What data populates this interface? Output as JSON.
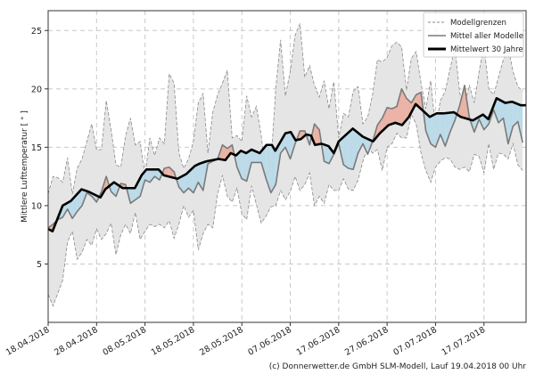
{
  "chart_data": {
    "type": "line",
    "title": "",
    "xlabel": "",
    "ylabel": "Mittlere Lufttemperatur [ ° ]",
    "xlim_days": [
      0,
      98.7
    ],
    "ylim": [
      0,
      26.7
    ],
    "grid": true,
    "legend_position": "top-right",
    "yticks": [
      5,
      10,
      15,
      20,
      25
    ],
    "xticks": [
      {
        "day": 0,
        "label": "18.04.2018"
      },
      {
        "day": 10,
        "label": "28.04.2018"
      },
      {
        "day": 20,
        "label": "08.05.2018"
      },
      {
        "day": 30,
        "label": "18.05.2018"
      },
      {
        "day": 40,
        "label": "28.05.2018"
      },
      {
        "day": 50,
        "label": "07.06.2018"
      },
      {
        "day": 60,
        "label": "17.06.2018"
      },
      {
        "day": 70,
        "label": "27.06.2018"
      },
      {
        "day": 80,
        "label": "07.07.2018"
      },
      {
        "day": 90,
        "label": "17.07.2018"
      }
    ],
    "legend": [
      "Modellgrenzen",
      "Mittel aller Modelle",
      "Mittelwert 30 Jahre"
    ],
    "series": {
      "upper_bound": [
        11,
        12.5,
        12.4,
        12,
        14.1,
        11,
        13.2,
        14,
        15.5,
        17,
        14.8,
        14.8,
        19,
        16.5,
        13.5,
        13.3,
        16,
        17.5,
        15.2,
        15.5,
        12.5,
        15.8,
        14.3,
        15.8,
        15.3,
        21.3,
        20.5,
        14.5,
        13.2,
        14,
        15.5,
        18.8,
        19.6,
        14.5,
        18,
        19.5,
        20.5,
        21.6,
        15.8,
        16,
        15.5,
        19.4,
        17.6,
        18.5,
        16,
        12.6,
        13.5,
        20,
        24.2,
        19.4,
        21.5,
        24.6,
        25.6,
        21,
        22,
        20.3,
        19.3,
        20.7,
        18.3,
        20.6,
        15.8,
        17.9,
        17.6,
        19.8,
        20.2,
        17,
        17.6,
        19.5,
        22.5,
        22.3,
        22.7,
        23.7,
        24,
        23.6,
        19.9,
        22.6,
        23.2,
        20.5,
        18.3,
        20.7,
        16.6,
        19,
        19.8,
        21.7,
        23.6,
        19.6,
        18.7,
        20.3,
        18.8,
        21.5,
        23.7,
        20,
        19.5,
        21,
        22.5,
        23.6,
        21.5,
        20.2,
        19.8
      ],
      "lower_bound": [
        2.4,
        1.4,
        2.5,
        3.6,
        6.9,
        7.8,
        5.4,
        6,
        7.1,
        6.6,
        8,
        7.1,
        7.6,
        8.5,
        5.8,
        7.5,
        8.4,
        7.6,
        9.4,
        7.1,
        7.8,
        8.4,
        8.2,
        8.4,
        8.1,
        8.7,
        7.2,
        8.4,
        10,
        9,
        9.6,
        6.2,
        7.6,
        8.4,
        8.1,
        11,
        12.6,
        10.8,
        10.3,
        11.5,
        9.3,
        8.8,
        11.7,
        10.1,
        8.5,
        9.1,
        9.9,
        10,
        11.3,
        10.5,
        11.2,
        12.5,
        11.3,
        11.8,
        12.8,
        10,
        10.8,
        10.2,
        11.8,
        11.3,
        11.3,
        12.3,
        11.4,
        11.3,
        12.2,
        13.8,
        15,
        14.5,
        14.8,
        13,
        15,
        15.3,
        16.2,
        15.8,
        15.8,
        17.8,
        17,
        14.5,
        13,
        12,
        13.3,
        13.8,
        14.1,
        14,
        13.3,
        13.1,
        13.3,
        12.9,
        14.4,
        14.2,
        12.8,
        15.3,
        13.1,
        14.5,
        14.4,
        14,
        15.3,
        13.5,
        13
      ],
      "model_mean": [
        8.1,
        8.4,
        8.8,
        9,
        9.7,
        8.9,
        9.5,
        10,
        11.1,
        10.8,
        10.3,
        11.2,
        12.5,
        11.2,
        10.8,
        11.9,
        11.8,
        10.2,
        10.5,
        10.8,
        12.2,
        12,
        12.5,
        12.2,
        13.2,
        13.3,
        12.9,
        11.6,
        11.1,
        11.5,
        11.1,
        12,
        11.3,
        13.6,
        13.8,
        14,
        15.2,
        14.9,
        15.2,
        13.3,
        12.3,
        12.1,
        13.7,
        13.7,
        13.7,
        12.3,
        11.1,
        11.8,
        14.5,
        15,
        14,
        15.3,
        16.4,
        16.4,
        15.2,
        17,
        16.5,
        13.8,
        13.6,
        14.4,
        15.3,
        13.5,
        13.2,
        13.1,
        14.5,
        15.3,
        14.4,
        15.5,
        16.9,
        17.5,
        18.4,
        18.3,
        18.5,
        20,
        19.2,
        18.8,
        19.5,
        19.7,
        16.4,
        15.3,
        15,
        16.1,
        15.1,
        16.3,
        17.3,
        18.6,
        20.3,
        17.5,
        16.3,
        17.4,
        16.5,
        17,
        18.2,
        17.1,
        17.5,
        15.3,
        16.8,
        17.2,
        15.4
      ],
      "climate_mean_30y": [
        [
          0,
          8.0
        ],
        [
          0.9,
          7.8
        ],
        [
          3,
          10
        ],
        [
          4.7,
          10.4
        ],
        [
          6.9,
          11.4
        ],
        [
          8.3,
          11.2
        ],
        [
          10.8,
          10.7
        ],
        [
          11.8,
          11.4
        ],
        [
          13.6,
          12
        ],
        [
          15.4,
          11.5
        ],
        [
          17.9,
          11.5
        ],
        [
          19.3,
          12.6
        ],
        [
          20.3,
          13.1
        ],
        [
          22.8,
          13.1
        ],
        [
          23.9,
          12.6
        ],
        [
          26.7,
          12.3
        ],
        [
          28.5,
          12.7
        ],
        [
          30.3,
          13.4
        ],
        [
          31.3,
          13.6
        ],
        [
          32.7,
          13.8
        ],
        [
          35.2,
          14.0
        ],
        [
          36.6,
          13.9
        ],
        [
          37.7,
          14.5
        ],
        [
          38.8,
          14.3
        ],
        [
          39.8,
          14.7
        ],
        [
          40.9,
          14.5
        ],
        [
          42,
          14.8
        ],
        [
          43.7,
          14.5
        ],
        [
          45.1,
          15.2
        ],
        [
          46.2,
          15.2
        ],
        [
          46.9,
          14.7
        ],
        [
          49,
          16.2
        ],
        [
          50.1,
          16.3
        ],
        [
          51.1,
          15.6
        ],
        [
          52.2,
          15.7
        ],
        [
          53.3,
          16.1
        ],
        [
          54.3,
          16.0
        ],
        [
          55.1,
          15.2
        ],
        [
          56.5,
          15.3
        ],
        [
          57.9,
          15.1
        ],
        [
          59,
          14.5
        ],
        [
          60,
          15.5
        ],
        [
          62.9,
          16.6
        ],
        [
          65,
          15.9
        ],
        [
          67.1,
          15.5
        ],
        [
          68.5,
          16.2
        ],
        [
          70.3,
          16.9
        ],
        [
          71.7,
          17.1
        ],
        [
          73.1,
          16.9
        ],
        [
          74.5,
          17.6
        ],
        [
          75.9,
          18.7
        ],
        [
          78.8,
          17.6
        ],
        [
          80.2,
          17.9
        ],
        [
          81.6,
          17.9
        ],
        [
          83.8,
          18.0
        ],
        [
          85.2,
          17.6
        ],
        [
          87.7,
          17.3
        ],
        [
          89.8,
          17.8
        ],
        [
          90.9,
          17.4
        ],
        [
          92.6,
          19.2
        ],
        [
          94.4,
          18.8
        ],
        [
          95.8,
          18.9
        ],
        [
          97.6,
          18.6
        ],
        [
          98.7,
          18.6
        ]
      ]
    },
    "colors": {
      "band_fill": "#e5e5e5",
      "band_line": "#8a8a8a",
      "model_line": "#7a7a7a",
      "climate_line": "#000000",
      "above_fill": "#eab3a6",
      "below_fill": "#bcdbe9",
      "grid": "#c8c8c8"
    }
  },
  "footer": {
    "credit": "(c) Donnerwetter.de GmbH SLM-Modell, Lauf 19.04.2018 00 Uhr"
  }
}
